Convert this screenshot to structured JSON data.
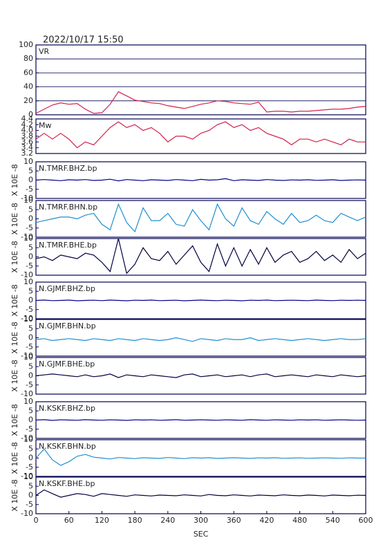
{
  "chart_data": [
    {
      "type": "line",
      "title": "2022/10/17 15:50",
      "grid": true,
      "x": [
        0,
        15,
        30,
        45,
        60,
        75,
        90,
        105,
        120,
        135,
        150,
        165,
        180,
        195,
        210,
        225,
        240,
        255,
        270,
        285,
        300,
        315,
        330,
        345,
        360,
        375,
        390,
        405,
        420,
        435,
        450,
        465,
        480,
        495,
        510,
        525,
        540,
        555,
        570,
        585,
        600
      ],
      "xlim": [
        0,
        600
      ],
      "ylim": [
        0,
        100
      ],
      "yticks": [
        0,
        20,
        40,
        60,
        80,
        100
      ],
      "series": [
        {
          "name": "VR",
          "color": "#d0204a",
          "values": [
            2,
            8,
            14,
            17,
            15,
            16,
            8,
            2,
            3,
            15,
            33,
            27,
            21,
            19,
            17,
            16,
            13,
            11,
            9,
            12,
            15,
            17,
            20,
            19,
            17,
            16,
            15,
            18,
            4,
            5,
            5,
            4,
            5,
            5,
            6,
            7,
            8,
            8,
            9,
            11,
            12
          ]
        }
      ]
    },
    {
      "type": "line",
      "grid": false,
      "x": [
        0,
        15,
        30,
        45,
        60,
        75,
        90,
        105,
        120,
        135,
        150,
        165,
        180,
        195,
        210,
        225,
        240,
        255,
        270,
        285,
        300,
        315,
        330,
        345,
        360,
        375,
        390,
        405,
        420,
        435,
        450,
        465,
        480,
        495,
        510,
        525,
        540,
        555,
        570,
        585,
        600
      ],
      "xlim": [
        0,
        600
      ],
      "ylim": [
        3.2,
        4.4
      ],
      "yticks": [
        3.2,
        3.4,
        3.6,
        3.8,
        {
          "value": 4,
          "label": "4.0"
        },
        4.2,
        4.4
      ],
      "series": [
        {
          "name": "Mw",
          "color": "#d0204a",
          "values": [
            3.7,
            3.9,
            3.7,
            3.9,
            3.7,
            3.4,
            3.6,
            3.5,
            3.8,
            4.1,
            4.3,
            4.1,
            4.2,
            4.0,
            4.1,
            3.9,
            3.6,
            3.8,
            3.8,
            3.7,
            3.9,
            4.0,
            4.2,
            4.3,
            4.1,
            4.2,
            4.0,
            4.1,
            3.9,
            3.8,
            3.7,
            3.5,
            3.7,
            3.7,
            3.6,
            3.7,
            3.6,
            3.5,
            3.7,
            3.6,
            3.6
          ]
        }
      ]
    },
    {
      "type": "line",
      "grid": false,
      "ylabel": "X 10E -8",
      "x": [
        0,
        15,
        30,
        45,
        60,
        75,
        90,
        105,
        120,
        135,
        150,
        165,
        180,
        195,
        210,
        225,
        240,
        255,
        270,
        285,
        300,
        315,
        330,
        345,
        360,
        375,
        390,
        405,
        420,
        435,
        450,
        465,
        480,
        495,
        510,
        525,
        540,
        555,
        570,
        585,
        600
      ],
      "xlim": [
        0,
        600
      ],
      "ylim": [
        -10,
        10
      ],
      "yticks": [
        -10,
        -5,
        0,
        5,
        10
      ],
      "series": [
        {
          "name": "N.TMRF.BHZ.bp",
          "color": "#00008b",
          "values": [
            0,
            0.3,
            0,
            -0.3,
            0.2,
            0,
            0.3,
            -0.2,
            0,
            0.5,
            -0.4,
            0.3,
            0,
            -0.3,
            0.2,
            0,
            -0.2,
            0.3,
            0,
            -0.3,
            0.4,
            0,
            0.2,
            0.8,
            -0.3,
            0.2,
            0,
            -0.2,
            0.3,
            0,
            -0.2,
            0.1,
            0,
            0.2,
            -0.1,
            0,
            0.2,
            -0.2,
            0,
            0.1,
            0
          ]
        }
      ]
    },
    {
      "type": "line",
      "grid": false,
      "ylabel": "X 10E -8",
      "x": [
        0,
        15,
        30,
        45,
        60,
        75,
        90,
        105,
        120,
        135,
        150,
        165,
        180,
        195,
        210,
        225,
        240,
        255,
        270,
        285,
        300,
        315,
        330,
        345,
        360,
        375,
        390,
        405,
        420,
        435,
        450,
        465,
        480,
        495,
        510,
        525,
        540,
        555,
        570,
        585,
        600
      ],
      "xlim": [
        0,
        600
      ],
      "ylim": [
        -10,
        10
      ],
      "yticks": [
        -10,
        -5,
        0,
        5,
        10
      ],
      "series": [
        {
          "name": "N.TMRF.BHN.bp",
          "color": "#1f8fd0",
          "values": [
            -2,
            -1,
            0,
            1,
            1,
            0,
            2,
            3,
            -3,
            -6,
            8,
            -2,
            -7,
            6,
            -1,
            -1,
            3,
            -3,
            -4,
            5,
            -1,
            -6,
            8,
            0,
            -4,
            6,
            -1,
            -3,
            4,
            0,
            -3,
            3,
            -2,
            -1,
            2,
            -1,
            -2,
            3,
            1,
            -1,
            1
          ]
        }
      ]
    },
    {
      "type": "line",
      "grid": false,
      "ylabel": "X 10E -8",
      "x": [
        0,
        15,
        30,
        45,
        60,
        75,
        90,
        105,
        120,
        135,
        150,
        165,
        180,
        195,
        210,
        225,
        240,
        255,
        270,
        285,
        300,
        315,
        330,
        345,
        360,
        375,
        390,
        405,
        420,
        435,
        450,
        465,
        480,
        495,
        510,
        525,
        540,
        555,
        570,
        585,
        600
      ],
      "xlim": [
        0,
        600
      ],
      "ylim": [
        -10,
        10
      ],
      "yticks": [
        -10,
        -5,
        0,
        5,
        10
      ],
      "series": [
        {
          "name": "N.TMRF.BHE.bp",
          "color": "#000040",
          "values": [
            -1,
            0,
            -2,
            1,
            0,
            -1,
            2,
            1,
            -3,
            -8,
            10,
            -9,
            -4,
            5,
            -1,
            -2,
            3,
            -4,
            1,
            6,
            -3,
            -8,
            7,
            -5,
            5,
            -5,
            4,
            -4,
            5,
            -3,
            1,
            3,
            -3,
            -1,
            3,
            -2,
            1,
            -3,
            4,
            -1,
            2
          ]
        }
      ]
    },
    {
      "type": "line",
      "grid": false,
      "ylabel": "X 10E -8",
      "x": [
        0,
        15,
        30,
        45,
        60,
        75,
        90,
        105,
        120,
        135,
        150,
        165,
        180,
        195,
        210,
        225,
        240,
        255,
        270,
        285,
        300,
        315,
        330,
        345,
        360,
        375,
        390,
        405,
        420,
        435,
        450,
        465,
        480,
        495,
        510,
        525,
        540,
        555,
        570,
        585,
        600
      ],
      "xlim": [
        0,
        600
      ],
      "ylim": [
        -10,
        10
      ],
      "yticks": [
        -10,
        -5,
        0,
        5,
        10
      ],
      "series": [
        {
          "name": "N.GJMF.BHZ.bp",
          "color": "#00008b",
          "values": [
            0,
            0.2,
            -0.1,
            0,
            0.2,
            -0.2,
            0,
            0.1,
            -0.1,
            0.2,
            0,
            -0.2,
            0.1,
            0,
            0.2,
            -0.1,
            0,
            0.1,
            -0.2,
            0,
            0.2,
            0,
            -0.1,
            0.1,
            0,
            -0.2,
            0.1,
            0,
            0.2,
            -0.1,
            0,
            0.1,
            0,
            -0.1,
            0.2,
            0,
            -0.1,
            0.1,
            0,
            0.1,
            0
          ]
        }
      ]
    },
    {
      "type": "line",
      "grid": false,
      "ylabel": "X 10E -8",
      "x": [
        0,
        15,
        30,
        45,
        60,
        75,
        90,
        105,
        120,
        135,
        150,
        165,
        180,
        195,
        210,
        225,
        240,
        255,
        270,
        285,
        300,
        315,
        330,
        345,
        360,
        375,
        390,
        405,
        420,
        435,
        450,
        465,
        480,
        495,
        510,
        525,
        540,
        555,
        570,
        585,
        600
      ],
      "xlim": [
        0,
        600
      ],
      "ylim": [
        -10,
        10
      ],
      "yticks": [
        -10,
        -5,
        0,
        5,
        10
      ],
      "series": [
        {
          "name": "N.GJMF.BHN.bp",
          "color": "#1f8fd0",
          "values": [
            -1,
            -0.5,
            -1.5,
            -1,
            -0.5,
            -1,
            -1.5,
            -0.5,
            -1,
            -1.5,
            -0.5,
            -1,
            -1.5,
            -0.5,
            -1,
            -1.5,
            -1,
            0,
            -1,
            -2,
            -0.5,
            -1,
            -1.5,
            -0.5,
            -1,
            -1,
            0,
            -1.5,
            -1,
            -0.5,
            -1,
            -1.5,
            -1,
            -0.5,
            -1,
            -1.5,
            -1,
            -0.5,
            -1,
            -1,
            -0.5
          ]
        }
      ]
    },
    {
      "type": "line",
      "grid": false,
      "ylabel": "X 10E -8",
      "x": [
        0,
        15,
        30,
        45,
        60,
        75,
        90,
        105,
        120,
        135,
        150,
        165,
        180,
        195,
        210,
        225,
        240,
        255,
        270,
        285,
        300,
        315,
        330,
        345,
        360,
        375,
        390,
        405,
        420,
        435,
        450,
        465,
        480,
        495,
        510,
        525,
        540,
        555,
        570,
        585,
        600
      ],
      "xlim": [
        0,
        600
      ],
      "ylim": [
        -10,
        10
      ],
      "yticks": [
        -10,
        -5,
        0,
        5,
        10
      ],
      "series": [
        {
          "name": "N.GJMF.BHE.bp",
          "color": "#000040",
          "values": [
            0,
            0.5,
            1,
            0.5,
            0,
            -0.5,
            0.5,
            -0.5,
            0,
            1,
            -1,
            0.5,
            0,
            -0.5,
            0.5,
            0,
            -0.5,
            -1,
            0.5,
            1,
            -0.5,
            0,
            0.5,
            -0.5,
            0,
            0.5,
            -0.5,
            0.5,
            1,
            -0.5,
            0,
            0.5,
            0,
            -0.5,
            0.5,
            0,
            -0.5,
            0.5,
            0,
            -0.5,
            0
          ]
        }
      ]
    },
    {
      "type": "line",
      "grid": false,
      "ylabel": "X 10E -8",
      "x": [
        0,
        15,
        30,
        45,
        60,
        75,
        90,
        105,
        120,
        135,
        150,
        165,
        180,
        195,
        210,
        225,
        240,
        255,
        270,
        285,
        300,
        315,
        330,
        345,
        360,
        375,
        390,
        405,
        420,
        435,
        450,
        465,
        480,
        495,
        510,
        525,
        540,
        555,
        570,
        585,
        600
      ],
      "xlim": [
        0,
        600
      ],
      "ylim": [
        -10,
        10
      ],
      "yticks": [
        -10,
        -5,
        0,
        5,
        10
      ],
      "series": [
        {
          "name": "N.KSKF.BHZ.bp",
          "color": "#00008b",
          "values": [
            0,
            0.2,
            -0.2,
            0.1,
            0,
            -0.1,
            0.2,
            0,
            -0.1,
            0.1,
            0,
            -0.2,
            0.1,
            0,
            0.1,
            -0.1,
            0,
            0.2,
            -0.1,
            0,
            0.1,
            0,
            -0.1,
            0.1,
            0,
            -0.1,
            0.2,
            0,
            -0.1,
            0.1,
            0,
            -0.1,
            0.1,
            0,
            0.1,
            -0.1,
            0,
            0.1,
            0,
            -0.1,
            0
          ]
        }
      ]
    },
    {
      "type": "line",
      "grid": false,
      "ylabel": "X 10E -8",
      "x": [
        0,
        15,
        30,
        45,
        60,
        75,
        90,
        105,
        120,
        135,
        150,
        165,
        180,
        195,
        210,
        225,
        240,
        255,
        270,
        285,
        300,
        315,
        330,
        345,
        360,
        375,
        390,
        405,
        420,
        435,
        450,
        465,
        480,
        495,
        510,
        525,
        540,
        555,
        570,
        585,
        600
      ],
      "xlim": [
        0,
        600
      ],
      "ylim": [
        -10,
        10
      ],
      "yticks": [
        -10,
        -5,
        0,
        5,
        10
      ],
      "series": [
        {
          "name": "N.KSKF.BHN.bp",
          "color": "#1f8fd0",
          "values": [
            0,
            5,
            -1,
            -4,
            -2,
            1,
            2,
            0.5,
            0,
            -0.5,
            0.3,
            0,
            -0.3,
            0.2,
            0,
            -0.2,
            0.3,
            0,
            -0.3,
            0.2,
            0,
            0.2,
            -0.2,
            0,
            0.2,
            0,
            -0.2,
            0.1,
            0,
            0.2,
            -0.1,
            0,
            0.1,
            -0.1,
            0,
            0.1,
            0,
            -0.1,
            0.1,
            0,
            0
          ]
        }
      ]
    },
    {
      "type": "line",
      "grid": false,
      "ylabel": "X 10E -8",
      "xlabel": "SEC",
      "x": [
        0,
        15,
        30,
        45,
        60,
        75,
        90,
        105,
        120,
        135,
        150,
        165,
        180,
        195,
        210,
        225,
        240,
        255,
        270,
        285,
        300,
        315,
        330,
        345,
        360,
        375,
        390,
        405,
        420,
        435,
        450,
        465,
        480,
        495,
        510,
        525,
        540,
        555,
        570,
        585,
        600
      ],
      "xlim": [
        0,
        600
      ],
      "xticks": [
        0,
        60,
        120,
        180,
        240,
        300,
        360,
        420,
        480,
        540,
        600
      ],
      "ylim": [
        -10,
        10
      ],
      "yticks": [
        -10,
        -5,
        0,
        5,
        10
      ],
      "series": [
        {
          "name": "N.KSKF.BHE.bp",
          "color": "#000040",
          "values": [
            0,
            3,
            1,
            -1,
            0,
            1,
            0.5,
            -0.5,
            1,
            0.5,
            0,
            -0.5,
            0.3,
            0,
            -0.3,
            0.2,
            0,
            -0.2,
            0.3,
            0,
            -0.3,
            0.5,
            0,
            -0.2,
            0.3,
            0,
            -0.3,
            0.2,
            0,
            -0.2,
            0.3,
            0,
            -0.2,
            0.2,
            0,
            -0.3,
            0.2,
            0,
            -0.2,
            0.1,
            0
          ]
        }
      ]
    }
  ]
}
